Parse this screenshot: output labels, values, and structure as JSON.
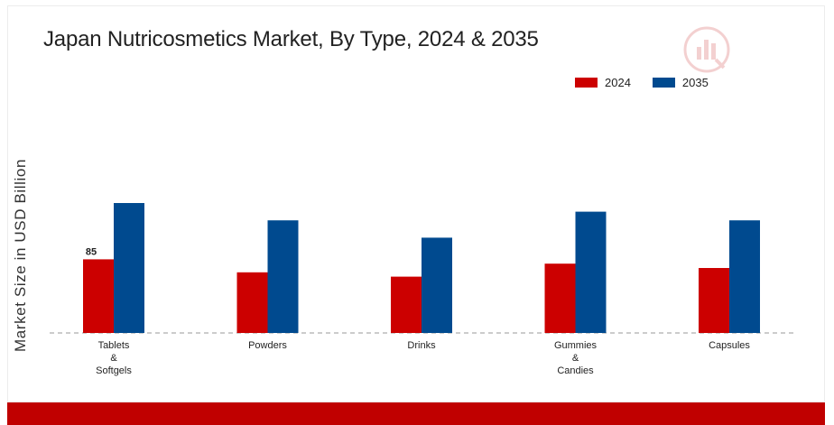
{
  "chart_data": {
    "type": "bar",
    "title": "Japan Nutricosmetics Market, By Type, 2024 & 2035",
    "ylabel": "Market Size in USD Billion",
    "xlabel": "",
    "categories": [
      "Tablets & Softgels",
      "Powders",
      "Drinks",
      "Gummies & Candies",
      "Capsules"
    ],
    "category_lines": [
      [
        "Tablets",
        "&",
        "Softgels"
      ],
      [
        "Powders"
      ],
      [
        "Drinks"
      ],
      [
        "Gummies",
        "&",
        "Candies"
      ],
      [
        "Capsules"
      ]
    ],
    "series": [
      {
        "name": "2024",
        "color": "#cc0000",
        "values": [
          85,
          70,
          65,
          80,
          75
        ]
      },
      {
        "name": "2035",
        "color": "#004a8f",
        "values": [
          150,
          130,
          110,
          140,
          130
        ]
      }
    ],
    "data_labels": [
      {
        "series": 0,
        "index": 0,
        "text": "85"
      }
    ],
    "ylim": [
      0,
      160
    ],
    "grid": false,
    "legend_position": "top-right",
    "baseline_style": "dashed"
  },
  "colors": {
    "accent_bar": "#c00000",
    "axis": "#999999"
  },
  "logo": {
    "icon": "brand-logo-icon"
  }
}
